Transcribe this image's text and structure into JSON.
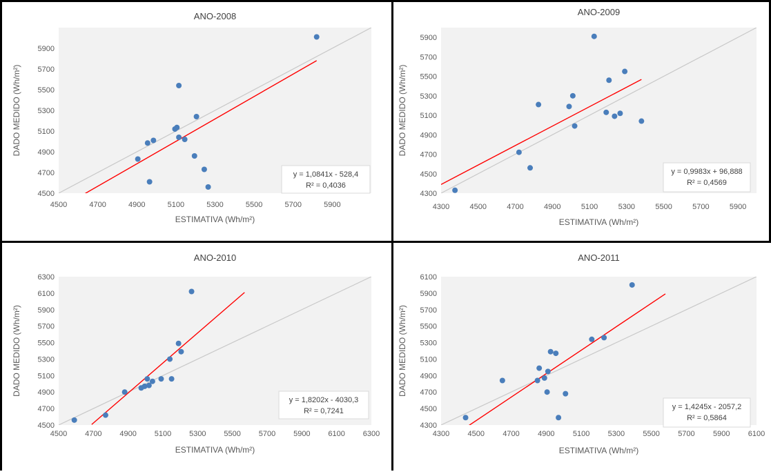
{
  "chart_data": [
    {
      "type": "scatter",
      "title": "ANO-2008",
      "xlabel": "ESTIMATIVA (Wh/m²)",
      "ylabel": "DADO MEDIDO (Wh/m²)",
      "xlim": [
        4500,
        6100
      ],
      "ylim": [
        4500,
        6100
      ],
      "xticks": [
        4500,
        4700,
        4900,
        5100,
        5300,
        5500,
        5700,
        5900
      ],
      "yticks": [
        4500,
        4700,
        4900,
        5100,
        5300,
        5500,
        5700,
        5900
      ],
      "points": [
        {
          "x": 4905,
          "y": 4830
        },
        {
          "x": 4955,
          "y": 4985
        },
        {
          "x": 4985,
          "y": 5010
        },
        {
          "x": 4965,
          "y": 4610
        },
        {
          "x": 5095,
          "y": 5120
        },
        {
          "x": 5105,
          "y": 5135
        },
        {
          "x": 5115,
          "y": 5040
        },
        {
          "x": 5145,
          "y": 5020
        },
        {
          "x": 5115,
          "y": 5540
        },
        {
          "x": 5195,
          "y": 4860
        },
        {
          "x": 5205,
          "y": 5240
        },
        {
          "x": 5245,
          "y": 4730
        },
        {
          "x": 5265,
          "y": 4560
        },
        {
          "x": 5820,
          "y": 6010
        }
      ],
      "trendline": {
        "slope": 1.0841,
        "intercept": -528.4,
        "x_range": [
          4450,
          5820
        ],
        "color": "#ff0000"
      },
      "identity_line": {
        "color": "#c8c8c8"
      },
      "equation": "y = 1,0841x - 528,4",
      "r2": "R² = 0,4036",
      "point_color": "#4a7ebb",
      "grid": false
    },
    {
      "type": "scatter",
      "title": "ANO-2009",
      "xlabel": "ESTIMATIVA (Wh/m²)",
      "ylabel": "DADO MEDIDO (Wh/m²)",
      "xlim": [
        4300,
        6000
      ],
      "ylim": [
        4300,
        6000
      ],
      "xticks": [
        4300,
        4500,
        4700,
        4900,
        5100,
        5300,
        5500,
        5700,
        5900
      ],
      "yticks": [
        4300,
        4500,
        4700,
        4900,
        5100,
        5300,
        5500,
        5700,
        5900
      ],
      "points": [
        {
          "x": 4375,
          "y": 4330
        },
        {
          "x": 4720,
          "y": 4720
        },
        {
          "x": 4780,
          "y": 4560
        },
        {
          "x": 4825,
          "y": 5210
        },
        {
          "x": 4990,
          "y": 5190
        },
        {
          "x": 5010,
          "y": 5300
        },
        {
          "x": 5020,
          "y": 4990
        },
        {
          "x": 5125,
          "y": 5910
        },
        {
          "x": 5190,
          "y": 5130
        },
        {
          "x": 5205,
          "y": 5460
        },
        {
          "x": 5235,
          "y": 5090
        },
        {
          "x": 5265,
          "y": 5120
        },
        {
          "x": 5290,
          "y": 5550
        },
        {
          "x": 5380,
          "y": 5040
        }
      ],
      "trendline": {
        "slope": 0.9983,
        "intercept": 96.888,
        "x_range": [
          4300,
          5380
        ],
        "color": "#ff0000"
      },
      "identity_line": {
        "color": "#c8c8c8"
      },
      "equation": "y = 0,9983x + 96,888",
      "r2": "R² = 0,4569",
      "point_color": "#4a7ebb",
      "grid": false
    },
    {
      "type": "scatter",
      "title": "ANO-2010",
      "xlabel": "ESTIMATIVA (Wh/m²)",
      "ylabel": "DADO MEDIDO (Wh/m²)",
      "xlim": [
        4500,
        6300
      ],
      "ylim": [
        4500,
        6300
      ],
      "xticks": [
        4500,
        4700,
        4900,
        5100,
        5300,
        5500,
        5700,
        5900,
        6100,
        6300
      ],
      "yticks": [
        4500,
        4700,
        4900,
        5100,
        5300,
        5500,
        5700,
        5900,
        6100,
        6300
      ],
      "points": [
        {
          "x": 4590,
          "y": 4560
        },
        {
          "x": 4770,
          "y": 4620
        },
        {
          "x": 4880,
          "y": 4900
        },
        {
          "x": 4975,
          "y": 4950
        },
        {
          "x": 4995,
          "y": 4970
        },
        {
          "x": 5010,
          "y": 5060
        },
        {
          "x": 5020,
          "y": 4980
        },
        {
          "x": 5040,
          "y": 5030
        },
        {
          "x": 5090,
          "y": 5060
        },
        {
          "x": 5140,
          "y": 5300
        },
        {
          "x": 5150,
          "y": 5060
        },
        {
          "x": 5190,
          "y": 5490
        },
        {
          "x": 5205,
          "y": 5390
        },
        {
          "x": 5265,
          "y": 6120
        }
      ],
      "trendline": {
        "slope": 1.8202,
        "intercept": -4030.3,
        "x_range": [
          4690,
          5570
        ],
        "color": "#ff0000"
      },
      "identity_line": {
        "color": "#c8c8c8"
      },
      "equation": "y = 1,8202x - 4030,3",
      "r2": "R² = 0,7241",
      "point_color": "#4a7ebb",
      "grid": false
    },
    {
      "type": "scatter",
      "title": "ANO-2011",
      "xlabel": "ESTIMATIVA (Wh/m²)",
      "ylabel": "DADO MEDIDO (Wh/m²)",
      "xlim": [
        4300,
        6100
      ],
      "ylim": [
        4300,
        6100
      ],
      "xticks": [
        4300,
        4500,
        4700,
        4900,
        5100,
        5300,
        5500,
        5700,
        5900,
        6100
      ],
      "yticks": [
        4300,
        4500,
        4700,
        4900,
        5100,
        5300,
        5500,
        5700,
        5900,
        6100
      ],
      "points": [
        {
          "x": 4440,
          "y": 4390
        },
        {
          "x": 4650,
          "y": 4840
        },
        {
          "x": 4850,
          "y": 4840
        },
        {
          "x": 4860,
          "y": 4990
        },
        {
          "x": 4890,
          "y": 4870
        },
        {
          "x": 4905,
          "y": 4700
        },
        {
          "x": 4910,
          "y": 4950
        },
        {
          "x": 4925,
          "y": 5190
        },
        {
          "x": 4955,
          "y": 5170
        },
        {
          "x": 4970,
          "y": 4390
        },
        {
          "x": 5010,
          "y": 4680
        },
        {
          "x": 5160,
          "y": 5340
        },
        {
          "x": 5230,
          "y": 5360
        },
        {
          "x": 5390,
          "y": 6000
        }
      ],
      "trendline": {
        "slope": 1.4245,
        "intercept": -2057.2,
        "x_range": [
          4460,
          5580
        ],
        "color": "#ff0000"
      },
      "identity_line": {
        "color": "#c8c8c8"
      },
      "equation": "y = 1,4245x - 2057,2",
      "r2": "R² = 0,5864",
      "point_color": "#4a7ebb",
      "grid": false
    }
  ]
}
